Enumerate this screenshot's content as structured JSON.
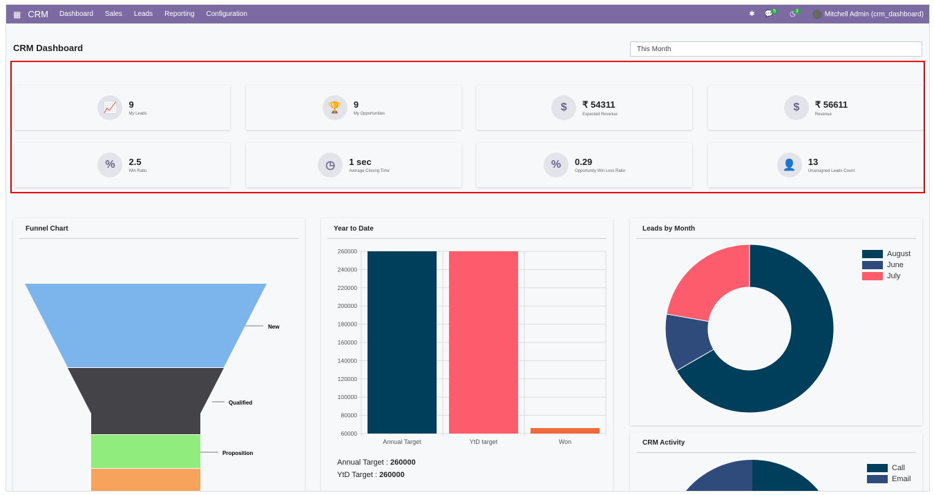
{
  "nav": {
    "app": "CRM",
    "menu": [
      "Dashboard",
      "Sales",
      "Leads",
      "Reporting",
      "Configuration"
    ],
    "messages_count": "5",
    "activities_count": "3",
    "user": "Mitchell Admin (crm_dashboard)"
  },
  "page": {
    "title": "CRM Dashboard",
    "filter": "This Month"
  },
  "kpis": [
    {
      "icon": "chart-line-icon",
      "glyph": "📈",
      "value": "9",
      "label": "My Leads"
    },
    {
      "icon": "trophy-icon",
      "glyph": "🏆",
      "value": "9",
      "label": "My Opportunities"
    },
    {
      "icon": "dollar-icon",
      "glyph": "$",
      "value": "₹ 54311",
      "label": "Expected Revenue"
    },
    {
      "icon": "dollar-icon",
      "glyph": "$",
      "value": "₹ 56611",
      "label": "Revenue"
    },
    {
      "icon": "percent-icon",
      "glyph": "%",
      "value": "2.5",
      "label": "Win Ratio"
    },
    {
      "icon": "clock-icon",
      "glyph": "◷",
      "value": "1 sec",
      "label": "Average Closing Time"
    },
    {
      "icon": "percent-icon",
      "glyph": "%",
      "value": "0.29",
      "label": "Opportunity Win Loss Ratio"
    },
    {
      "icon": "user-x-icon",
      "glyph": "👤",
      "value": "13",
      "label": "Unassigned Leads Count"
    }
  ],
  "funnel": {
    "title": "Funnel Chart",
    "stages": [
      {
        "name": "New",
        "color": "#7cb5ec"
      },
      {
        "name": "Qualified",
        "color": "#434348"
      },
      {
        "name": "Proposition",
        "color": "#90ed7d"
      },
      {
        "name": "",
        "color": "#f7a35c"
      }
    ]
  },
  "chart_data": [
    {
      "type": "bar",
      "title": "Year to Date",
      "categories": [
        "Annual Target",
        "YtD target",
        "Won"
      ],
      "values": [
        260000,
        260000,
        66000
      ],
      "colors": [
        "#003f5c",
        "#fc5c6c",
        "#f26a3a"
      ],
      "ylim": [
        60000,
        260000
      ],
      "yticks": [
        60000,
        80000,
        100000,
        120000,
        140000,
        160000,
        180000,
        200000,
        220000,
        240000,
        260000
      ],
      "grid": true
    },
    {
      "type": "pie",
      "title": "Leads by Month",
      "labels": [
        "August",
        "June",
        "July"
      ],
      "values": [
        6,
        1,
        2
      ],
      "colors": [
        "#003f5c",
        "#2f4b7c",
        "#fc5c6c"
      ],
      "donut": true,
      "legend": "top-right"
    },
    {
      "type": "pie",
      "title": "CRM Activity",
      "labels": [
        "Call",
        "Email"
      ],
      "colors": [
        "#003f5c",
        "#2f4b7c"
      ],
      "legend": "top-right"
    }
  ],
  "ytd_summary": {
    "annual_label": "Annual Target : ",
    "annual_value": "260000",
    "ytd_label": "YtD Target : ",
    "ytd_value": "260000"
  }
}
